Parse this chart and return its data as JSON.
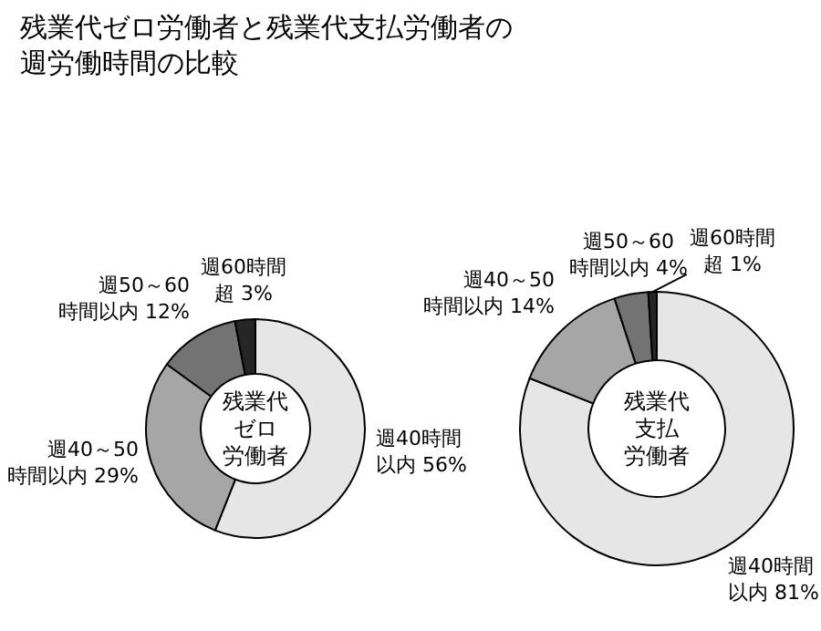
{
  "chart_data": [
    {
      "type": "donut",
      "title": "残業代ゼロ労働者と残業代支払労働者の週労働時間の比較",
      "annotations": [
        "残業代",
        "ゼロ",
        "労働者"
      ],
      "categories": [
        "週40時間以内",
        "週40～50時間以内",
        "週50～60時間以内",
        "週60時間超"
      ],
      "values": [
        56,
        29,
        12,
        3
      ],
      "value_labels": [
        "56%",
        "29%",
        "12%",
        "3%"
      ],
      "colors": [
        "#e6e6e6",
        "#a6a6a6",
        "#737373",
        "#262626"
      ]
    },
    {
      "type": "donut",
      "annotations": [
        "残業代",
        "支払",
        "労働者"
      ],
      "categories": [
        "週40時間以内",
        "週40～50時間以内",
        "週50～60時間以内",
        "週60時間超"
      ],
      "values": [
        81,
        14,
        4,
        1
      ],
      "value_labels": [
        "81%",
        "14%",
        "4%",
        "1%"
      ],
      "colors": [
        "#e6e6e6",
        "#a6a6a6",
        "#737373",
        "#262626"
      ]
    }
  ]
}
